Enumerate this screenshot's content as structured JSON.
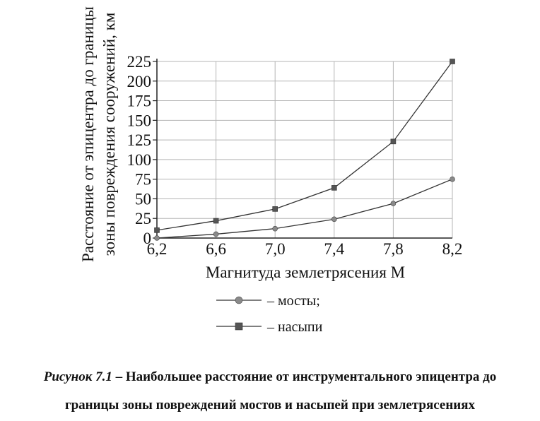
{
  "chart_data": {
    "type": "line",
    "x": [
      6.2,
      6.6,
      7.0,
      7.4,
      7.8,
      8.2
    ],
    "x_tick_labels": [
      "6,2",
      "6,6",
      "7,0",
      "7,4",
      "7,8",
      "8,2"
    ],
    "y_ticks": [
      0,
      25,
      50,
      75,
      100,
      125,
      150,
      175,
      200,
      225
    ],
    "ylim": [
      0,
      225
    ],
    "xlabel": "Магнитуда землетрясения М",
    "ylabel_lines": [
      "Расстояние от эпицентра до границы",
      "зоны повреждения сооружений, км"
    ],
    "grid": true,
    "legend_position": "bottom",
    "series": [
      {
        "name": "– мосты;",
        "marker": "circle",
        "color": "#8a8a8a",
        "values": [
          0,
          5,
          12,
          24,
          44,
          75
        ]
      },
      {
        "name": "– насыпи",
        "marker": "square",
        "color": "#555555",
        "values": [
          10,
          22,
          37,
          64,
          123,
          225
        ]
      }
    ],
    "line_color": "#333333",
    "grid_color": "#b5b5b5"
  },
  "caption": {
    "lead": "Рисунок 7.1",
    "text": " – Наибольшее расстояние от инструментального эпицентра до",
    "line2": "границы зоны повреждений мостов и насыпей при землетрясениях"
  }
}
